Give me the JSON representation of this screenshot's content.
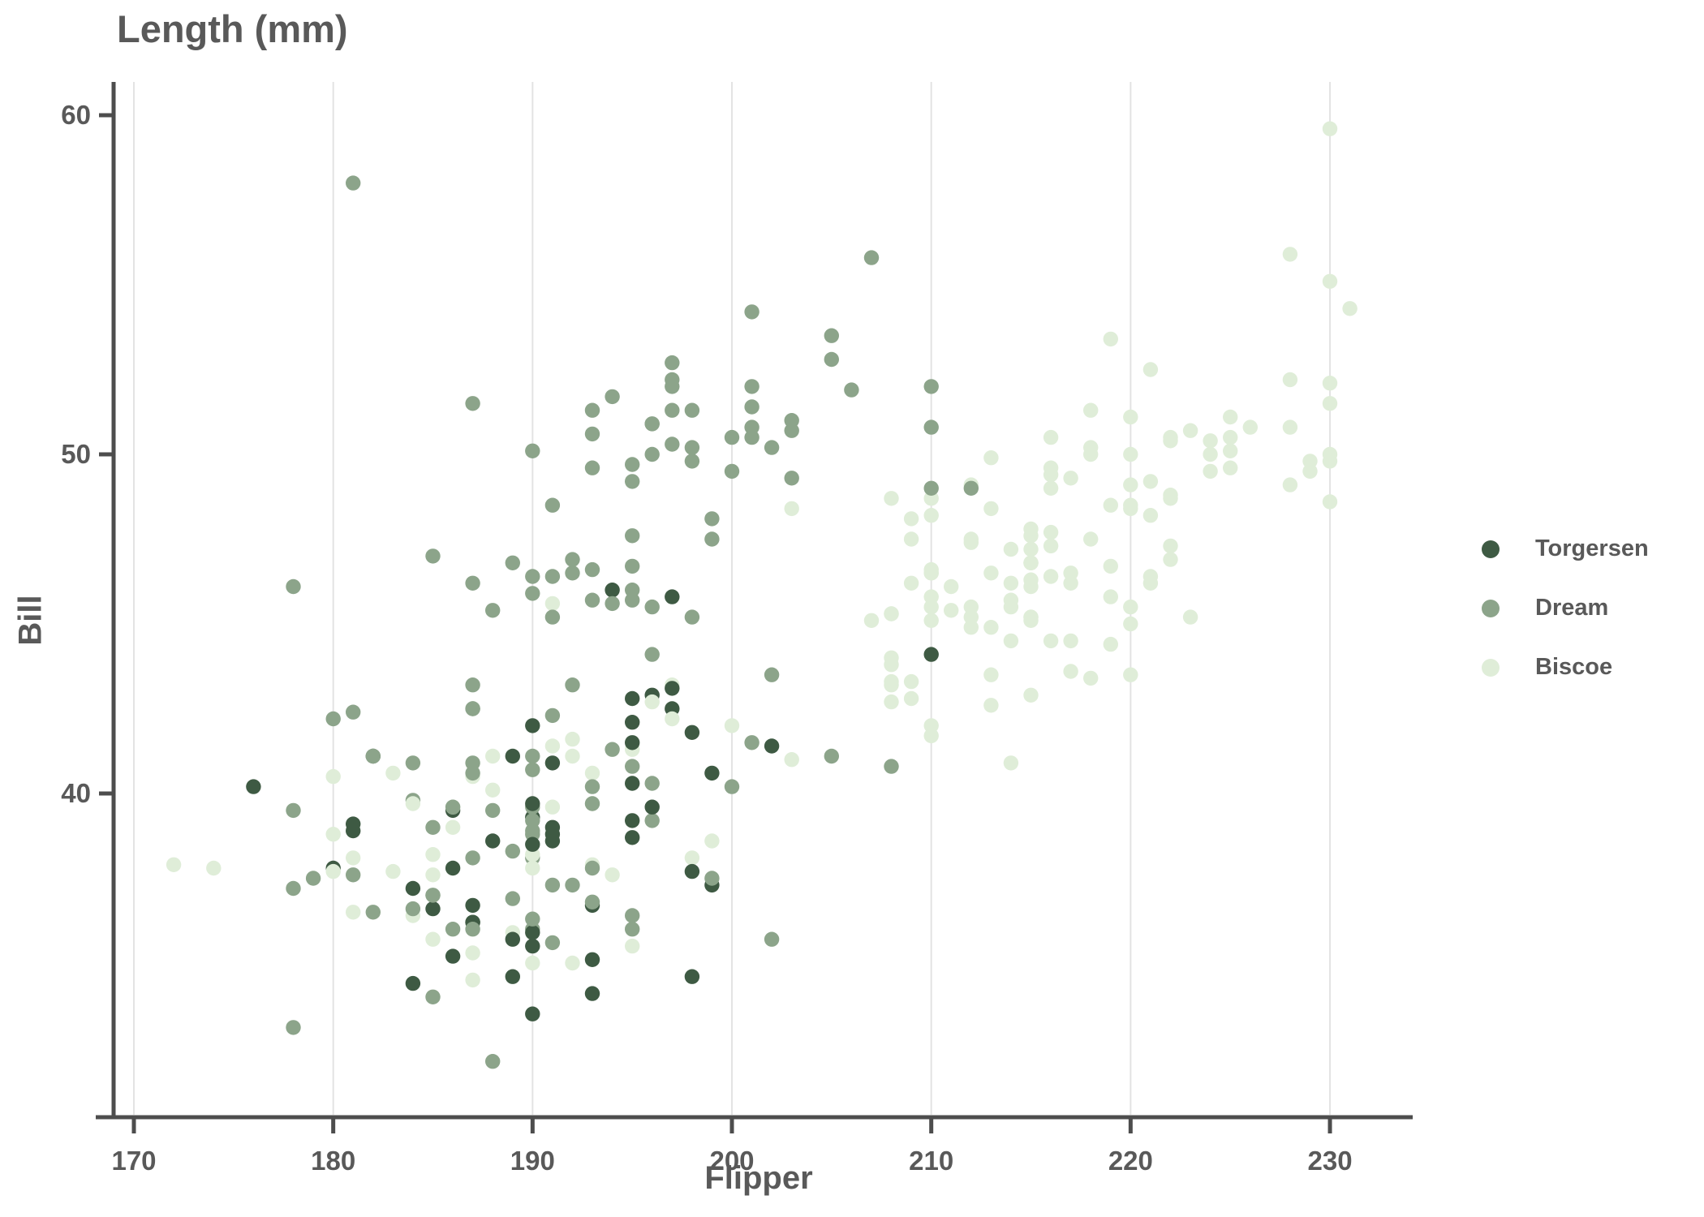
{
  "title": "Length (mm)",
  "x_axis": {
    "label": "Flipper",
    "ticks": [
      170,
      180,
      190,
      200,
      210,
      220,
      230
    ]
  },
  "y_axis": {
    "label": "Bill",
    "ticks": [
      40,
      50,
      60
    ]
  },
  "legend": {
    "items": [
      {
        "label": "Torgersen",
        "color": "#3E5A43"
      },
      {
        "label": "Dream",
        "color": "#8CA48A"
      },
      {
        "label": "Biscoe",
        "color": "#DFEDD8"
      }
    ]
  },
  "colors": {
    "axis_line": "#4D4D4D",
    "gridline": "#E3E3E3",
    "text": "#595959"
  },
  "chart_data": {
    "type": "scatter",
    "title": "Length (mm)",
    "xlabel": "Flipper",
    "ylabel": "Bill",
    "xlim": [
      168,
      234
    ],
    "ylim": [
      30.4,
      61.2
    ],
    "x_ticks": [
      170,
      180,
      190,
      200,
      210,
      220,
      230
    ],
    "y_ticks": [
      40,
      50,
      60
    ],
    "grid": "vertical-only",
    "legend_position": "right",
    "series_names": [
      "Torgersen",
      "Dream",
      "Biscoe"
    ],
    "series_colors": [
      "#3E5A43",
      "#8CA48A",
      "#DFEDD8"
    ],
    "point_format": [
      "flipper_mm",
      "bill_mm",
      "series_index"
    ],
    "points": [
      [
        181,
        39.1,
        0
      ],
      [
        186,
        39.5,
        0
      ],
      [
        195,
        40.3,
        0
      ],
      [
        193,
        36.7,
        0
      ],
      [
        190,
        39.3,
        0
      ],
      [
        181,
        38.9,
        0
      ],
      [
        195,
        39.2,
        0
      ],
      [
        193,
        34.1,
        0
      ],
      [
        190,
        42,
        0
      ],
      [
        186,
        37.8,
        0
      ],
      [
        180,
        37.8,
        0
      ],
      [
        182,
        41.1,
        0
      ],
      [
        191,
        38.6,
        0
      ],
      [
        198,
        34.6,
        0
      ],
      [
        185,
        36.6,
        0
      ],
      [
        195,
        38.7,
        0
      ],
      [
        197,
        42.5,
        0
      ],
      [
        184,
        34.4,
        0
      ],
      [
        194,
        46,
        0
      ],
      [
        174,
        37.8,
        2
      ],
      [
        180,
        37.7,
        2
      ],
      [
        189,
        35.9,
        2
      ],
      [
        185,
        38.2,
        2
      ],
      [
        180,
        38.8,
        2
      ],
      [
        187,
        35.3,
        2
      ],
      [
        183,
        40.6,
        2
      ],
      [
        187,
        40.5,
        2
      ],
      [
        172,
        37.9,
        2
      ],
      [
        180,
        40.5,
        2
      ],
      [
        178,
        39.5,
        1
      ],
      [
        178,
        37.2,
        1
      ],
      [
        188,
        39.5,
        1
      ],
      [
        184,
        40.9,
        1
      ],
      [
        195,
        36.4,
        1
      ],
      [
        196,
        39.2,
        1
      ],
      [
        190,
        38.8,
        1
      ],
      [
        180,
        42.2,
        1
      ],
      [
        181,
        37.6,
        1
      ],
      [
        184,
        39.8,
        1
      ],
      [
        182,
        36.5,
        1
      ],
      [
        195,
        40.8,
        1
      ],
      [
        186,
        36,
        1
      ],
      [
        196,
        44.1,
        1
      ],
      [
        185,
        37,
        1
      ],
      [
        190,
        39.6,
        1
      ],
      [
        182,
        41.1,
        1
      ],
      [
        179,
        37.5,
        1
      ],
      [
        190,
        36,
        1
      ],
      [
        191,
        42.3,
        1
      ],
      [
        186,
        39.6,
        2
      ],
      [
        188,
        40.1,
        2
      ],
      [
        190,
        35,
        2
      ],
      [
        200,
        42,
        2
      ],
      [
        187,
        34.5,
        2
      ],
      [
        191,
        41.4,
        2
      ],
      [
        186,
        39,
        2
      ],
      [
        193,
        40.6,
        2
      ],
      [
        181,
        36.5,
        2
      ],
      [
        194,
        37.6,
        2
      ],
      [
        185,
        35.7,
        2
      ],
      [
        195,
        41.3,
        2
      ],
      [
        185,
        37.6,
        2
      ],
      [
        192,
        41.1,
        2
      ],
      [
        184,
        36.4,
        2
      ],
      [
        192,
        41.6,
        2
      ],
      [
        195,
        35.5,
        2
      ],
      [
        188,
        41.1,
        2
      ],
      [
        190,
        35.9,
        0
      ],
      [
        198,
        41.8,
        0
      ],
      [
        190,
        33.5,
        0
      ],
      [
        190,
        39.7,
        0
      ],
      [
        196,
        39.6,
        0
      ],
      [
        197,
        45.8,
        0
      ],
      [
        190,
        35.5,
        0
      ],
      [
        195,
        42.8,
        0
      ],
      [
        191,
        40.9,
        0
      ],
      [
        184,
        37.2,
        0
      ],
      [
        187,
        36.2,
        0
      ],
      [
        195,
        42.1,
        0
      ],
      [
        189,
        34.6,
        0
      ],
      [
        196,
        42.9,
        0
      ],
      [
        187,
        36.7,
        0
      ],
      [
        193,
        35.1,
        0
      ],
      [
        191,
        37.3,
        1
      ],
      [
        194,
        41.3,
        1
      ],
      [
        190,
        36.3,
        1
      ],
      [
        189,
        36.9,
        1
      ],
      [
        189,
        38.3,
        1
      ],
      [
        190,
        38.9,
        1
      ],
      [
        202,
        35.7,
        1
      ],
      [
        205,
        41.1,
        1
      ],
      [
        185,
        34,
        1
      ],
      [
        186,
        39.6,
        1
      ],
      [
        187,
        36.2,
        1
      ],
      [
        208,
        40.8,
        1
      ],
      [
        190,
        38.1,
        1
      ],
      [
        196,
        40.3,
        1
      ],
      [
        178,
        33.1,
        1
      ],
      [
        192,
        43.2,
        1
      ],
      [
        192,
        35,
        2
      ],
      [
        203,
        41,
        2
      ],
      [
        183,
        37.7,
        2
      ],
      [
        190,
        37.8,
        2
      ],
      [
        193,
        37.9,
        2
      ],
      [
        184,
        39.7,
        2
      ],
      [
        199,
        38.6,
        2
      ],
      [
        190,
        38.2,
        2
      ],
      [
        181,
        38.1,
        2
      ],
      [
        197,
        43.2,
        2
      ],
      [
        198,
        38.1,
        2
      ],
      [
        191,
        45.6,
        2
      ],
      [
        193,
        39.7,
        2
      ],
      [
        197,
        42.2,
        2
      ],
      [
        191,
        39.6,
        2
      ],
      [
        196,
        42.7,
        2
      ],
      [
        188,
        38.6,
        0
      ],
      [
        199,
        37.3,
        0
      ],
      [
        189,
        35.7,
        0
      ],
      [
        189,
        41.1,
        0
      ],
      [
        187,
        36.2,
        0
      ],
      [
        198,
        37.7,
        0
      ],
      [
        176,
        40.2,
        0
      ],
      [
        202,
        41.4,
        0
      ],
      [
        186,
        35.2,
        0
      ],
      [
        199,
        40.6,
        0
      ],
      [
        191,
        38.8,
        0
      ],
      [
        195,
        41.5,
        0
      ],
      [
        191,
        39,
        0
      ],
      [
        210,
        44.1,
        0
      ],
      [
        190,
        38.5,
        0
      ],
      [
        197,
        43.1,
        0
      ],
      [
        193,
        36.8,
        1
      ],
      [
        199,
        37.5,
        1
      ],
      [
        187,
        38.1,
        1
      ],
      [
        190,
        41.1,
        1
      ],
      [
        191,
        35.6,
        1
      ],
      [
        200,
        40.2,
        1
      ],
      [
        185,
        37,
        1
      ],
      [
        193,
        39.7,
        1
      ],
      [
        193,
        40.2,
        1
      ],
      [
        187,
        40.6,
        1
      ],
      [
        188,
        32.1,
        1
      ],
      [
        190,
        40.7,
        1
      ],
      [
        192,
        37.3,
        1
      ],
      [
        185,
        39,
        1
      ],
      [
        190,
        39.2,
        1
      ],
      [
        184,
        36.6,
        1
      ],
      [
        195,
        36,
        1
      ],
      [
        193,
        37.8,
        1
      ],
      [
        187,
        36,
        1
      ],
      [
        201,
        41.5,
        1
      ],
      [
        211,
        46.1,
        2
      ],
      [
        230,
        50,
        2
      ],
      [
        210,
        48.7,
        2
      ],
      [
        218,
        50,
        2
      ],
      [
        215,
        47.6,
        2
      ],
      [
        210,
        46.5,
        2
      ],
      [
        211,
        45.4,
        2
      ],
      [
        219,
        46.7,
        2
      ],
      [
        209,
        43.3,
        2
      ],
      [
        215,
        46.8,
        2
      ],
      [
        214,
        40.9,
        2
      ],
      [
        216,
        49,
        2
      ],
      [
        214,
        45.5,
        2
      ],
      [
        213,
        48.4,
        2
      ],
      [
        210,
        45.8,
        2
      ],
      [
        217,
        49.3,
        2
      ],
      [
        210,
        42,
        2
      ],
      [
        221,
        49.2,
        2
      ],
      [
        209,
        46.2,
        2
      ],
      [
        222,
        48.7,
        2
      ],
      [
        218,
        50.2,
        2
      ],
      [
        215,
        45.1,
        2
      ],
      [
        213,
        46.5,
        2
      ],
      [
        215,
        46.3,
        2
      ],
      [
        215,
        42.9,
        2
      ],
      [
        215,
        46.1,
        2
      ],
      [
        216,
        44.5,
        2
      ],
      [
        215,
        47.8,
        2
      ],
      [
        210,
        48.2,
        2
      ],
      [
        220,
        50,
        2
      ],
      [
        222,
        47.3,
        2
      ],
      [
        209,
        42.8,
        2
      ],
      [
        207,
        45.1,
        2
      ],
      [
        230,
        59.6,
        2
      ],
      [
        220,
        49.1,
        2
      ],
      [
        220,
        48.4,
        2
      ],
      [
        213,
        42.6,
        2
      ],
      [
        219,
        44.4,
        2
      ],
      [
        208,
        44,
        2
      ],
      [
        208,
        48.7,
        2
      ],
      [
        208,
        42.7,
        2
      ],
      [
        225,
        49.6,
        2
      ],
      [
        208,
        45.3,
        2
      ],
      [
        216,
        49.6,
        2
      ],
      [
        222,
        50.5,
        2
      ],
      [
        217,
        43.6,
        2
      ],
      [
        210,
        45.5,
        2
      ],
      [
        225,
        50.5,
        2
      ],
      [
        213,
        44.9,
        2
      ],
      [
        215,
        45.2,
        2
      ],
      [
        210,
        46.6,
        2
      ],
      [
        220,
        48.5,
        2
      ],
      [
        210,
        45.1,
        2
      ],
      [
        225,
        50.1,
        2
      ],
      [
        217,
        46.5,
        2
      ],
      [
        220,
        45,
        2
      ],
      [
        208,
        43.8,
        2
      ],
      [
        220,
        45.5,
        2
      ],
      [
        208,
        43.2,
        2
      ],
      [
        224,
        50.4,
        2
      ],
      [
        208,
        45.3,
        2
      ],
      [
        221,
        46.2,
        2
      ],
      [
        214,
        45.7,
        2
      ],
      [
        231,
        54.3,
        2
      ],
      [
        219,
        45.8,
        2
      ],
      [
        230,
        49.8,
        2
      ],
      [
        214,
        46.2,
        2
      ],
      [
        229,
        49.5,
        2
      ],
      [
        220,
        43.5,
        2
      ],
      [
        223,
        50.7,
        2
      ],
      [
        216,
        47.7,
        2
      ],
      [
        221,
        46.4,
        2
      ],
      [
        221,
        48.2,
        2
      ],
      [
        210,
        46.5,
        2
      ],
      [
        216,
        46.4,
        2
      ],
      [
        230,
        48.6,
        2
      ],
      [
        209,
        47.5,
        2
      ],
      [
        220,
        51.1,
        2
      ],
      [
        215,
        45.2,
        2
      ],
      [
        223,
        45.2,
        2
      ],
      [
        212,
        49.1,
        2
      ],
      [
        221,
        52.5,
        2
      ],
      [
        212,
        47.4,
        2
      ],
      [
        224,
        50,
        2
      ],
      [
        212,
        44.9,
        2
      ],
      [
        228,
        50.8,
        2
      ],
      [
        218,
        43.4,
        2
      ],
      [
        218,
        51.3,
        2
      ],
      [
        212,
        47.5,
        2
      ],
      [
        230,
        52.1,
        2
      ],
      [
        218,
        47.5,
        2
      ],
      [
        228,
        52.2,
        2
      ],
      [
        212,
        45.5,
        2
      ],
      [
        224,
        49.5,
        2
      ],
      [
        214,
        44.5,
        2
      ],
      [
        226,
        50.8,
        2
      ],
      [
        216,
        49.4,
        2
      ],
      [
        222,
        46.9,
        2
      ],
      [
        203,
        48.4,
        2
      ],
      [
        225,
        51.1,
        2
      ],
      [
        219,
        48.5,
        2
      ],
      [
        228,
        55.9,
        2
      ],
      [
        215,
        47.2,
        2
      ],
      [
        228,
        49.1,
        2
      ],
      [
        216,
        47.3,
        2
      ],
      [
        215,
        46.8,
        2
      ],
      [
        210,
        41.7,
        2
      ],
      [
        219,
        53.4,
        2
      ],
      [
        208,
        43.3,
        2
      ],
      [
        209,
        48.1,
        2
      ],
      [
        216,
        50.5,
        2
      ],
      [
        229,
        49.8,
        2
      ],
      [
        213,
        43.5,
        2
      ],
      [
        230,
        51.5,
        2
      ],
      [
        217,
        46.2,
        2
      ],
      [
        230,
        55.1,
        2
      ],
      [
        217,
        44.5,
        2
      ],
      [
        222,
        48.8,
        2
      ],
      [
        214,
        47.2,
        2
      ],
      [
        215,
        46.8,
        2
      ],
      [
        222,
        50.4,
        2
      ],
      [
        212,
        45.2,
        2
      ],
      [
        213,
        49.9,
        2
      ],
      [
        192,
        46.5,
        1
      ],
      [
        196,
        50,
        1
      ],
      [
        193,
        51.3,
        1
      ],
      [
        188,
        45.4,
        1
      ],
      [
        197,
        52.7,
        1
      ],
      [
        198,
        45.2,
        1
      ],
      [
        178,
        46.1,
        1
      ],
      [
        197,
        51.3,
        1
      ],
      [
        195,
        46,
        1
      ],
      [
        198,
        51.3,
        1
      ],
      [
        193,
        46.6,
        1
      ],
      [
        194,
        51.7,
        1
      ],
      [
        185,
        47,
        1
      ],
      [
        201,
        52,
        1
      ],
      [
        190,
        45.9,
        1
      ],
      [
        201,
        50.5,
        1
      ],
      [
        197,
        50.3,
        1
      ],
      [
        181,
        58,
        1
      ],
      [
        190,
        46.4,
        1
      ],
      [
        195,
        49.2,
        1
      ],
      [
        181,
        42.4,
        1
      ],
      [
        191,
        48.5,
        1
      ],
      [
        187,
        43.2,
        1
      ],
      [
        193,
        50.6,
        1
      ],
      [
        195,
        46.7,
        1
      ],
      [
        197,
        52,
        1
      ],
      [
        200,
        50.5,
        1
      ],
      [
        200,
        49.5,
        1
      ],
      [
        191,
        46.4,
        1
      ],
      [
        205,
        52.8,
        1
      ],
      [
        187,
        40.9,
        1
      ],
      [
        201,
        54.2,
        1
      ],
      [
        187,
        42.5,
        1
      ],
      [
        203,
        51,
        1
      ],
      [
        195,
        49.7,
        1
      ],
      [
        199,
        47.5,
        1
      ],
      [
        195,
        47.6,
        1
      ],
      [
        210,
        52,
        1
      ],
      [
        192,
        46.9,
        1
      ],
      [
        205,
        53.5,
        1
      ],
      [
        210,
        49,
        1
      ],
      [
        187,
        46.2,
        1
      ],
      [
        196,
        50.9,
        1
      ],
      [
        196,
        45.5,
        1
      ],
      [
        196,
        50.9,
        1
      ],
      [
        201,
        50.8,
        1
      ],
      [
        190,
        50.1,
        1
      ],
      [
        212,
        49,
        1
      ],
      [
        187,
        51.5,
        1
      ],
      [
        198,
        49.8,
        1
      ],
      [
        199,
        48.1,
        1
      ],
      [
        201,
        51.4,
        1
      ],
      [
        193,
        45.7,
        1
      ],
      [
        203,
        50.7,
        1
      ],
      [
        187,
        42.5,
        1
      ],
      [
        197,
        52.2,
        1
      ],
      [
        191,
        45.2,
        1
      ],
      [
        203,
        49.3,
        1
      ],
      [
        202,
        50.2,
        1
      ],
      [
        194,
        45.6,
        1
      ],
      [
        206,
        51.9,
        1
      ],
      [
        189,
        46.8,
        1
      ],
      [
        195,
        45.7,
        1
      ],
      [
        207,
        55.8,
        1
      ],
      [
        202,
        43.5,
        1
      ],
      [
        193,
        49.6,
        1
      ],
      [
        210,
        50.8,
        1
      ],
      [
        198,
        50.2,
        1
      ]
    ]
  }
}
